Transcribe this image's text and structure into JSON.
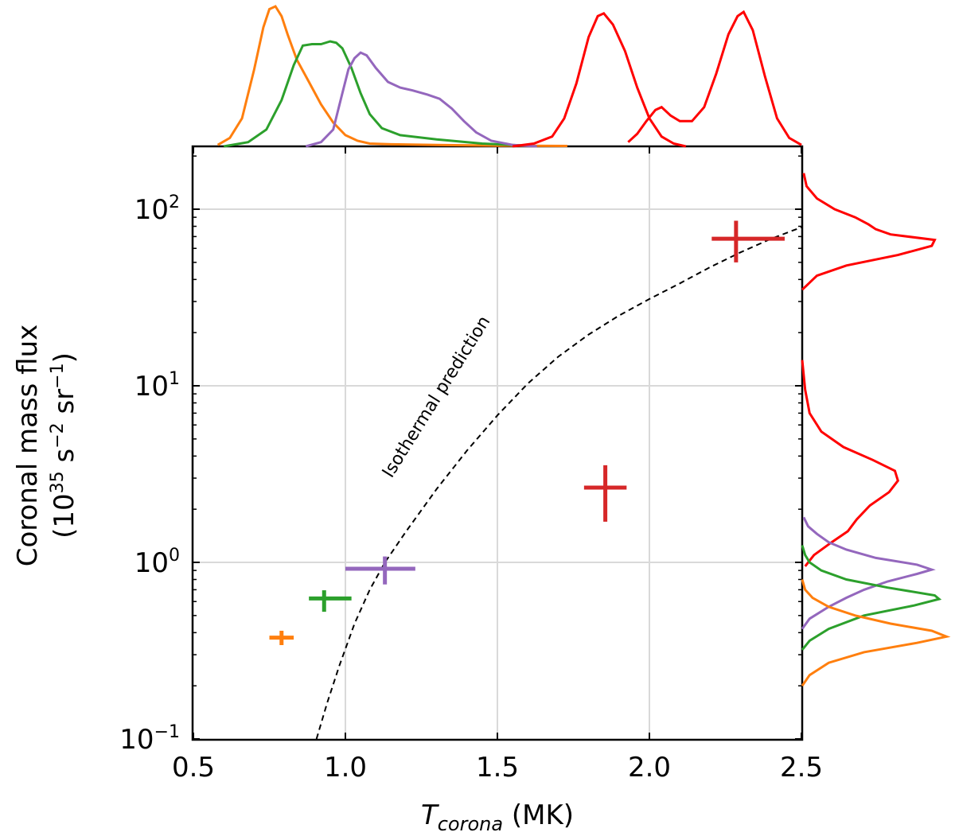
{
  "chart_data": {
    "type": "scatter",
    "title": "",
    "xlabel": {
      "main": "T",
      "sub": "corona",
      "unit": " (MK)"
    },
    "ylabel": {
      "line1": "Coronal mass flux",
      "line2_pre": "(10",
      "line2_exp1": "35",
      "line2_mid": " s",
      "line2_exp2": "−2",
      "line2_mid2": " sr",
      "line2_exp3": "−1",
      "line2_post": ")"
    },
    "xlim": [
      0.5,
      2.5
    ],
    "ylim": [
      0.1,
      220
    ],
    "yscale": "log",
    "grid": true,
    "xticks": [
      {
        "v": 0.5,
        "label": "0.5"
      },
      {
        "v": 1.0,
        "label": "1.0"
      },
      {
        "v": 1.5,
        "label": "1.5"
      },
      {
        "v": 2.0,
        "label": "2.0"
      },
      {
        "v": 2.5,
        "label": "2.5"
      }
    ],
    "yticks": [
      {
        "v": 0.1,
        "base": "10",
        "exp": "−1"
      },
      {
        "v": 1,
        "base": "10",
        "exp": "0"
      },
      {
        "v": 10,
        "base": "10",
        "exp": "1"
      },
      {
        "v": 100,
        "base": "10",
        "exp": "2"
      }
    ],
    "points": [
      {
        "color": "#ff7f0e",
        "x": 0.79,
        "y": 0.375,
        "xerr": [
          0.04,
          0.04
        ],
        "yerr": [
          0.035,
          0.035
        ]
      },
      {
        "color": "#2ca02c",
        "x": 0.93,
        "y": 0.625,
        "xerr": [
          0.05,
          0.09
        ],
        "yerr": [
          0.1,
          0.07
        ]
      },
      {
        "color": "#9467bd",
        "x": 1.13,
        "y": 0.92,
        "xerr": [
          0.13,
          0.1
        ],
        "yerr": [
          0.17,
          0.16
        ]
      },
      {
        "color": "#d62728",
        "x": 1.855,
        "y": 2.65,
        "xerr": [
          0.07,
          0.07
        ],
        "yerr": [
          0.95,
          0.9
        ]
      },
      {
        "color": "#d62728",
        "x": 2.285,
        "y": 68,
        "xerr": [
          0.08,
          0.16
        ],
        "yerr": [
          18,
          18
        ]
      }
    ],
    "isothermal": {
      "label": "Isothermal prediction",
      "curve": [
        [
          0.905,
          0.1
        ],
        [
          0.94,
          0.16
        ],
        [
          0.98,
          0.26
        ],
        [
          1.03,
          0.45
        ],
        [
          1.08,
          0.7
        ],
        [
          1.13,
          1.0
        ],
        [
          1.2,
          1.5
        ],
        [
          1.3,
          2.6
        ],
        [
          1.4,
          4.3
        ],
        [
          1.5,
          6.8
        ],
        [
          1.6,
          10.3
        ],
        [
          1.7,
          14.6
        ],
        [
          1.8,
          19.5
        ],
        [
          1.9,
          25
        ],
        [
          2.0,
          31
        ],
        [
          2.1,
          38
        ],
        [
          2.2,
          47
        ],
        [
          2.3,
          57
        ],
        [
          2.4,
          68
        ],
        [
          2.5,
          79
        ]
      ]
    },
    "top_distributions": [
      {
        "color": "#ff7f0e",
        "points": [
          [
            0.58,
            0.01
          ],
          [
            0.62,
            0.06
          ],
          [
            0.66,
            0.2
          ],
          [
            0.7,
            0.55
          ],
          [
            0.73,
            0.85
          ],
          [
            0.75,
            0.98
          ],
          [
            0.77,
            1.0
          ],
          [
            0.79,
            0.93
          ],
          [
            0.81,
            0.8
          ],
          [
            0.84,
            0.62
          ],
          [
            0.88,
            0.46
          ],
          [
            0.92,
            0.3
          ],
          [
            0.96,
            0.17
          ],
          [
            1.0,
            0.08
          ],
          [
            1.04,
            0.04
          ],
          [
            1.08,
            0.02
          ],
          [
            1.15,
            0.015
          ],
          [
            1.3,
            0.01
          ],
          [
            1.5,
            0.005
          ],
          [
            1.73,
            0.003
          ]
        ]
      },
      {
        "color": "#2ca02c",
        "points": [
          [
            0.6,
            0.0
          ],
          [
            0.68,
            0.03
          ],
          [
            0.74,
            0.12
          ],
          [
            0.79,
            0.33
          ],
          [
            0.83,
            0.58
          ],
          [
            0.86,
            0.72
          ],
          [
            0.89,
            0.73
          ],
          [
            0.92,
            0.73
          ],
          [
            0.95,
            0.75
          ],
          [
            0.97,
            0.74
          ],
          [
            0.99,
            0.7
          ],
          [
            1.02,
            0.56
          ],
          [
            1.05,
            0.38
          ],
          [
            1.08,
            0.23
          ],
          [
            1.12,
            0.13
          ],
          [
            1.18,
            0.08
          ],
          [
            1.3,
            0.05
          ],
          [
            1.45,
            0.02
          ],
          [
            1.6,
            0.005
          ]
        ]
      },
      {
        "color": "#9467bd",
        "points": [
          [
            0.87,
            0.0
          ],
          [
            0.92,
            0.03
          ],
          [
            0.96,
            0.12
          ],
          [
            0.99,
            0.38
          ],
          [
            1.01,
            0.55
          ],
          [
            1.03,
            0.63
          ],
          [
            1.05,
            0.67
          ],
          [
            1.07,
            0.65
          ],
          [
            1.1,
            0.56
          ],
          [
            1.14,
            0.46
          ],
          [
            1.18,
            0.42
          ],
          [
            1.22,
            0.4
          ],
          [
            1.27,
            0.37
          ],
          [
            1.31,
            0.34
          ],
          [
            1.35,
            0.27
          ],
          [
            1.39,
            0.18
          ],
          [
            1.43,
            0.1
          ],
          [
            1.48,
            0.04
          ],
          [
            1.55,
            0.01
          ],
          [
            1.63,
            0.0
          ]
        ]
      },
      {
        "color": "#ff0000",
        "points": [
          [
            1.55,
            0.0
          ],
          [
            1.62,
            0.02
          ],
          [
            1.68,
            0.07
          ],
          [
            1.72,
            0.2
          ],
          [
            1.76,
            0.45
          ],
          [
            1.8,
            0.78
          ],
          [
            1.83,
            0.93
          ],
          [
            1.85,
            0.95
          ],
          [
            1.88,
            0.87
          ],
          [
            1.92,
            0.68
          ],
          [
            1.96,
            0.42
          ],
          [
            2.0,
            0.2
          ],
          [
            2.04,
            0.07
          ],
          [
            2.08,
            0.02
          ],
          [
            2.12,
            0.0
          ]
        ]
      },
      {
        "color": "#ff0000",
        "points": [
          [
            1.93,
            0.03
          ],
          [
            1.96,
            0.09
          ],
          [
            1.99,
            0.18
          ],
          [
            2.02,
            0.26
          ],
          [
            2.04,
            0.28
          ],
          [
            2.07,
            0.22
          ],
          [
            2.1,
            0.18
          ],
          [
            2.14,
            0.18
          ],
          [
            2.18,
            0.28
          ],
          [
            2.22,
            0.52
          ],
          [
            2.26,
            0.8
          ],
          [
            2.29,
            0.93
          ],
          [
            2.31,
            0.96
          ],
          [
            2.34,
            0.83
          ],
          [
            2.38,
            0.5
          ],
          [
            2.42,
            0.2
          ],
          [
            2.46,
            0.06
          ],
          [
            2.5,
            0.01
          ]
        ]
      }
    ],
    "right_distributions": [
      {
        "color": "#ff0000",
        "points": [
          [
            35,
            0.0
          ],
          [
            42,
            0.1
          ],
          [
            48,
            0.3
          ],
          [
            55,
            0.65
          ],
          [
            62,
            0.88
          ],
          [
            67,
            0.9
          ],
          [
            72,
            0.6
          ],
          [
            77,
            0.5
          ],
          [
            82,
            0.45
          ],
          [
            90,
            0.36
          ],
          [
            100,
            0.22
          ],
          [
            115,
            0.1
          ],
          [
            135,
            0.03
          ],
          [
            160,
            0.01
          ]
        ]
      },
      {
        "color": "#ff0000",
        "points": [
          [
            0.95,
            0.02
          ],
          [
            1.1,
            0.08
          ],
          [
            1.3,
            0.2
          ],
          [
            1.5,
            0.31
          ],
          [
            1.75,
            0.37
          ],
          [
            2.1,
            0.46
          ],
          [
            2.5,
            0.59
          ],
          [
            2.9,
            0.65
          ],
          [
            3.3,
            0.63
          ],
          [
            3.8,
            0.48
          ],
          [
            4.5,
            0.28
          ],
          [
            5.5,
            0.13
          ],
          [
            7,
            0.05
          ],
          [
            9.5,
            0.02
          ],
          [
            14,
            0.0
          ]
        ]
      },
      {
        "color": "#9467bd",
        "points": [
          [
            0.42,
            0.0
          ],
          [
            0.48,
            0.05
          ],
          [
            0.56,
            0.18
          ],
          [
            0.63,
            0.3
          ],
          [
            0.7,
            0.42
          ],
          [
            0.78,
            0.58
          ],
          [
            0.86,
            0.78
          ],
          [
            0.91,
            0.88
          ],
          [
            0.97,
            0.78
          ],
          [
            1.06,
            0.5
          ],
          [
            1.18,
            0.3
          ],
          [
            1.3,
            0.18
          ],
          [
            1.45,
            0.1
          ],
          [
            1.6,
            0.04
          ],
          [
            1.8,
            0.01
          ]
        ]
      },
      {
        "color": "#2ca02c",
        "points": [
          [
            0.32,
            0.0
          ],
          [
            0.36,
            0.05
          ],
          [
            0.42,
            0.18
          ],
          [
            0.5,
            0.42
          ],
          [
            0.57,
            0.76
          ],
          [
            0.62,
            0.93
          ],
          [
            0.65,
            0.9
          ],
          [
            0.72,
            0.58
          ],
          [
            0.8,
            0.3
          ],
          [
            0.9,
            0.13
          ],
          [
            1.0,
            0.05
          ],
          [
            1.1,
            0.02
          ],
          [
            1.25,
            0.0
          ]
        ]
      },
      {
        "color": "#ff7f0e",
        "points": [
          [
            0.2,
            0.0
          ],
          [
            0.23,
            0.05
          ],
          [
            0.27,
            0.18
          ],
          [
            0.31,
            0.42
          ],
          [
            0.35,
            0.78
          ],
          [
            0.38,
            0.98
          ],
          [
            0.41,
            0.88
          ],
          [
            0.45,
            0.6
          ],
          [
            0.5,
            0.36
          ],
          [
            0.56,
            0.18
          ],
          [
            0.63,
            0.07
          ],
          [
            0.7,
            0.02
          ],
          [
            0.8,
            0.0
          ]
        ]
      }
    ]
  }
}
